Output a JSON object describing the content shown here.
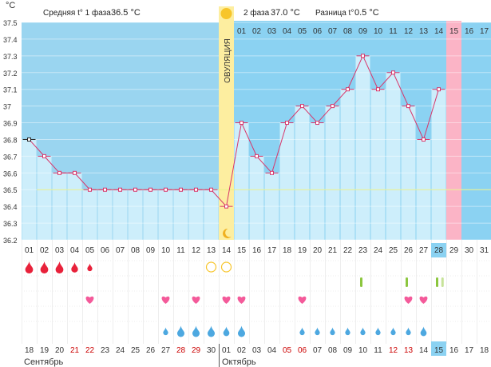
{
  "header": {
    "unit": "°C",
    "phase1_label": "Средняя t° 1 фаза",
    "phase1_value": "36.5 °C",
    "phase2_label": "2 фаза",
    "phase2_value": "37.0 °C",
    "diff_label": "Разница t°",
    "diff_value": "0.5 °C"
  },
  "ovulation_label": "ОВУЛЯЦИЯ",
  "months": [
    "Сентябрь",
    "Октябрь"
  ],
  "colors": {
    "phase1_bg": "#9ad5f0",
    "phase2_bg": "#8bd2f2",
    "bar_fill": "#cdeefb",
    "ovulation_band": "#fdeea0",
    "highlight_day": "#fbb4c6",
    "line": "#d8366a",
    "baseline": "#e8f08a",
    "blood": "#e8213a",
    "heart": "#f45a9a",
    "drop": "#4da8e0",
    "sun": "#f7c52a",
    "moon": "#f0b020",
    "mark": "#8cc63f"
  },
  "chart_data": {
    "type": "line",
    "title": "Базальная температура",
    "ylabel": "°C",
    "ylim": [
      36.2,
      37.5
    ],
    "yticks": [
      "37.5",
      "37.4",
      "37.3",
      "37.2",
      "37.1",
      "37",
      "36.9",
      "36.8",
      "36.7",
      "36.6",
      "36.5",
      "36.4",
      "36.3",
      "36.2"
    ],
    "cycle_days": [
      "01",
      "02",
      "03",
      "04",
      "05",
      "06",
      "07",
      "08",
      "09",
      "10",
      "11",
      "12",
      "13",
      "14",
      "15",
      "16",
      "17",
      "18",
      "19",
      "20",
      "21",
      "22",
      "23",
      "24",
      "25",
      "26",
      "27",
      "28",
      "29",
      "30",
      "31"
    ],
    "dates": [
      "18",
      "19",
      "20",
      "21",
      "22",
      "23",
      "24",
      "25",
      "26",
      "27",
      "28",
      "29",
      "30",
      "01",
      "02",
      "03",
      "04",
      "05",
      "06",
      "07",
      "08",
      "09",
      "10",
      "11",
      "12",
      "13",
      "14",
      "15",
      "16",
      "17",
      "18"
    ],
    "weekend_dates": [
      3,
      4,
      10,
      11,
      17,
      18,
      24,
      25
    ],
    "phase2_days": [
      "01",
      "02",
      "03",
      "04",
      "05",
      "06",
      "07",
      "08",
      "09",
      "10",
      "11",
      "12",
      "13",
      "14",
      "15",
      "16",
      "17"
    ],
    "temperatures": [
      36.8,
      36.7,
      36.6,
      36.6,
      36.5,
      36.5,
      36.5,
      36.5,
      36.5,
      36.5,
      36.5,
      36.5,
      36.5,
      36.4,
      36.9,
      36.7,
      36.6,
      36.9,
      37.0,
      36.9,
      37.0,
      37.1,
      37.3,
      37.1,
      37.2,
      37.0,
      36.8,
      37.1
    ],
    "coverline": 36.5,
    "ovulation_day": 14,
    "current_day": 28,
    "highlight_day": 29,
    "current_date": "15",
    "bleeding": [
      {
        "day": 1,
        "size": "l"
      },
      {
        "day": 2,
        "size": "l"
      },
      {
        "day": 3,
        "size": "l"
      },
      {
        "day": 4,
        "size": "m"
      },
      {
        "day": 5,
        "size": "s"
      }
    ],
    "tests": [
      {
        "day": 13,
        "type": "open"
      },
      {
        "day": 14,
        "type": "open"
      }
    ],
    "marks": [
      {
        "day": 23,
        "tone": "dark"
      },
      {
        "day": 26,
        "tone": "dark"
      },
      {
        "day": 28,
        "tone": "dark"
      },
      {
        "day": 28.5,
        "tone": "light"
      }
    ],
    "hearts": [
      5,
      10,
      12,
      14,
      15,
      19,
      26,
      27
    ],
    "drops": [
      {
        "day": 10,
        "size": "s"
      },
      {
        "day": 11,
        "size": "l"
      },
      {
        "day": 12,
        "size": "l"
      },
      {
        "day": 13,
        "size": "l"
      },
      {
        "day": 14,
        "size": "m"
      },
      {
        "day": 15,
        "size": "l"
      },
      {
        "day": 19,
        "size": "s"
      },
      {
        "day": 20,
        "size": "s"
      },
      {
        "day": 21,
        "size": "s"
      },
      {
        "day": 22,
        "size": "s"
      },
      {
        "day": 23,
        "size": "s"
      },
      {
        "day": 24,
        "size": "s"
      },
      {
        "day": 25,
        "size": "s"
      },
      {
        "day": 26,
        "size": "s"
      },
      {
        "day": 27,
        "size": "m"
      }
    ]
  }
}
